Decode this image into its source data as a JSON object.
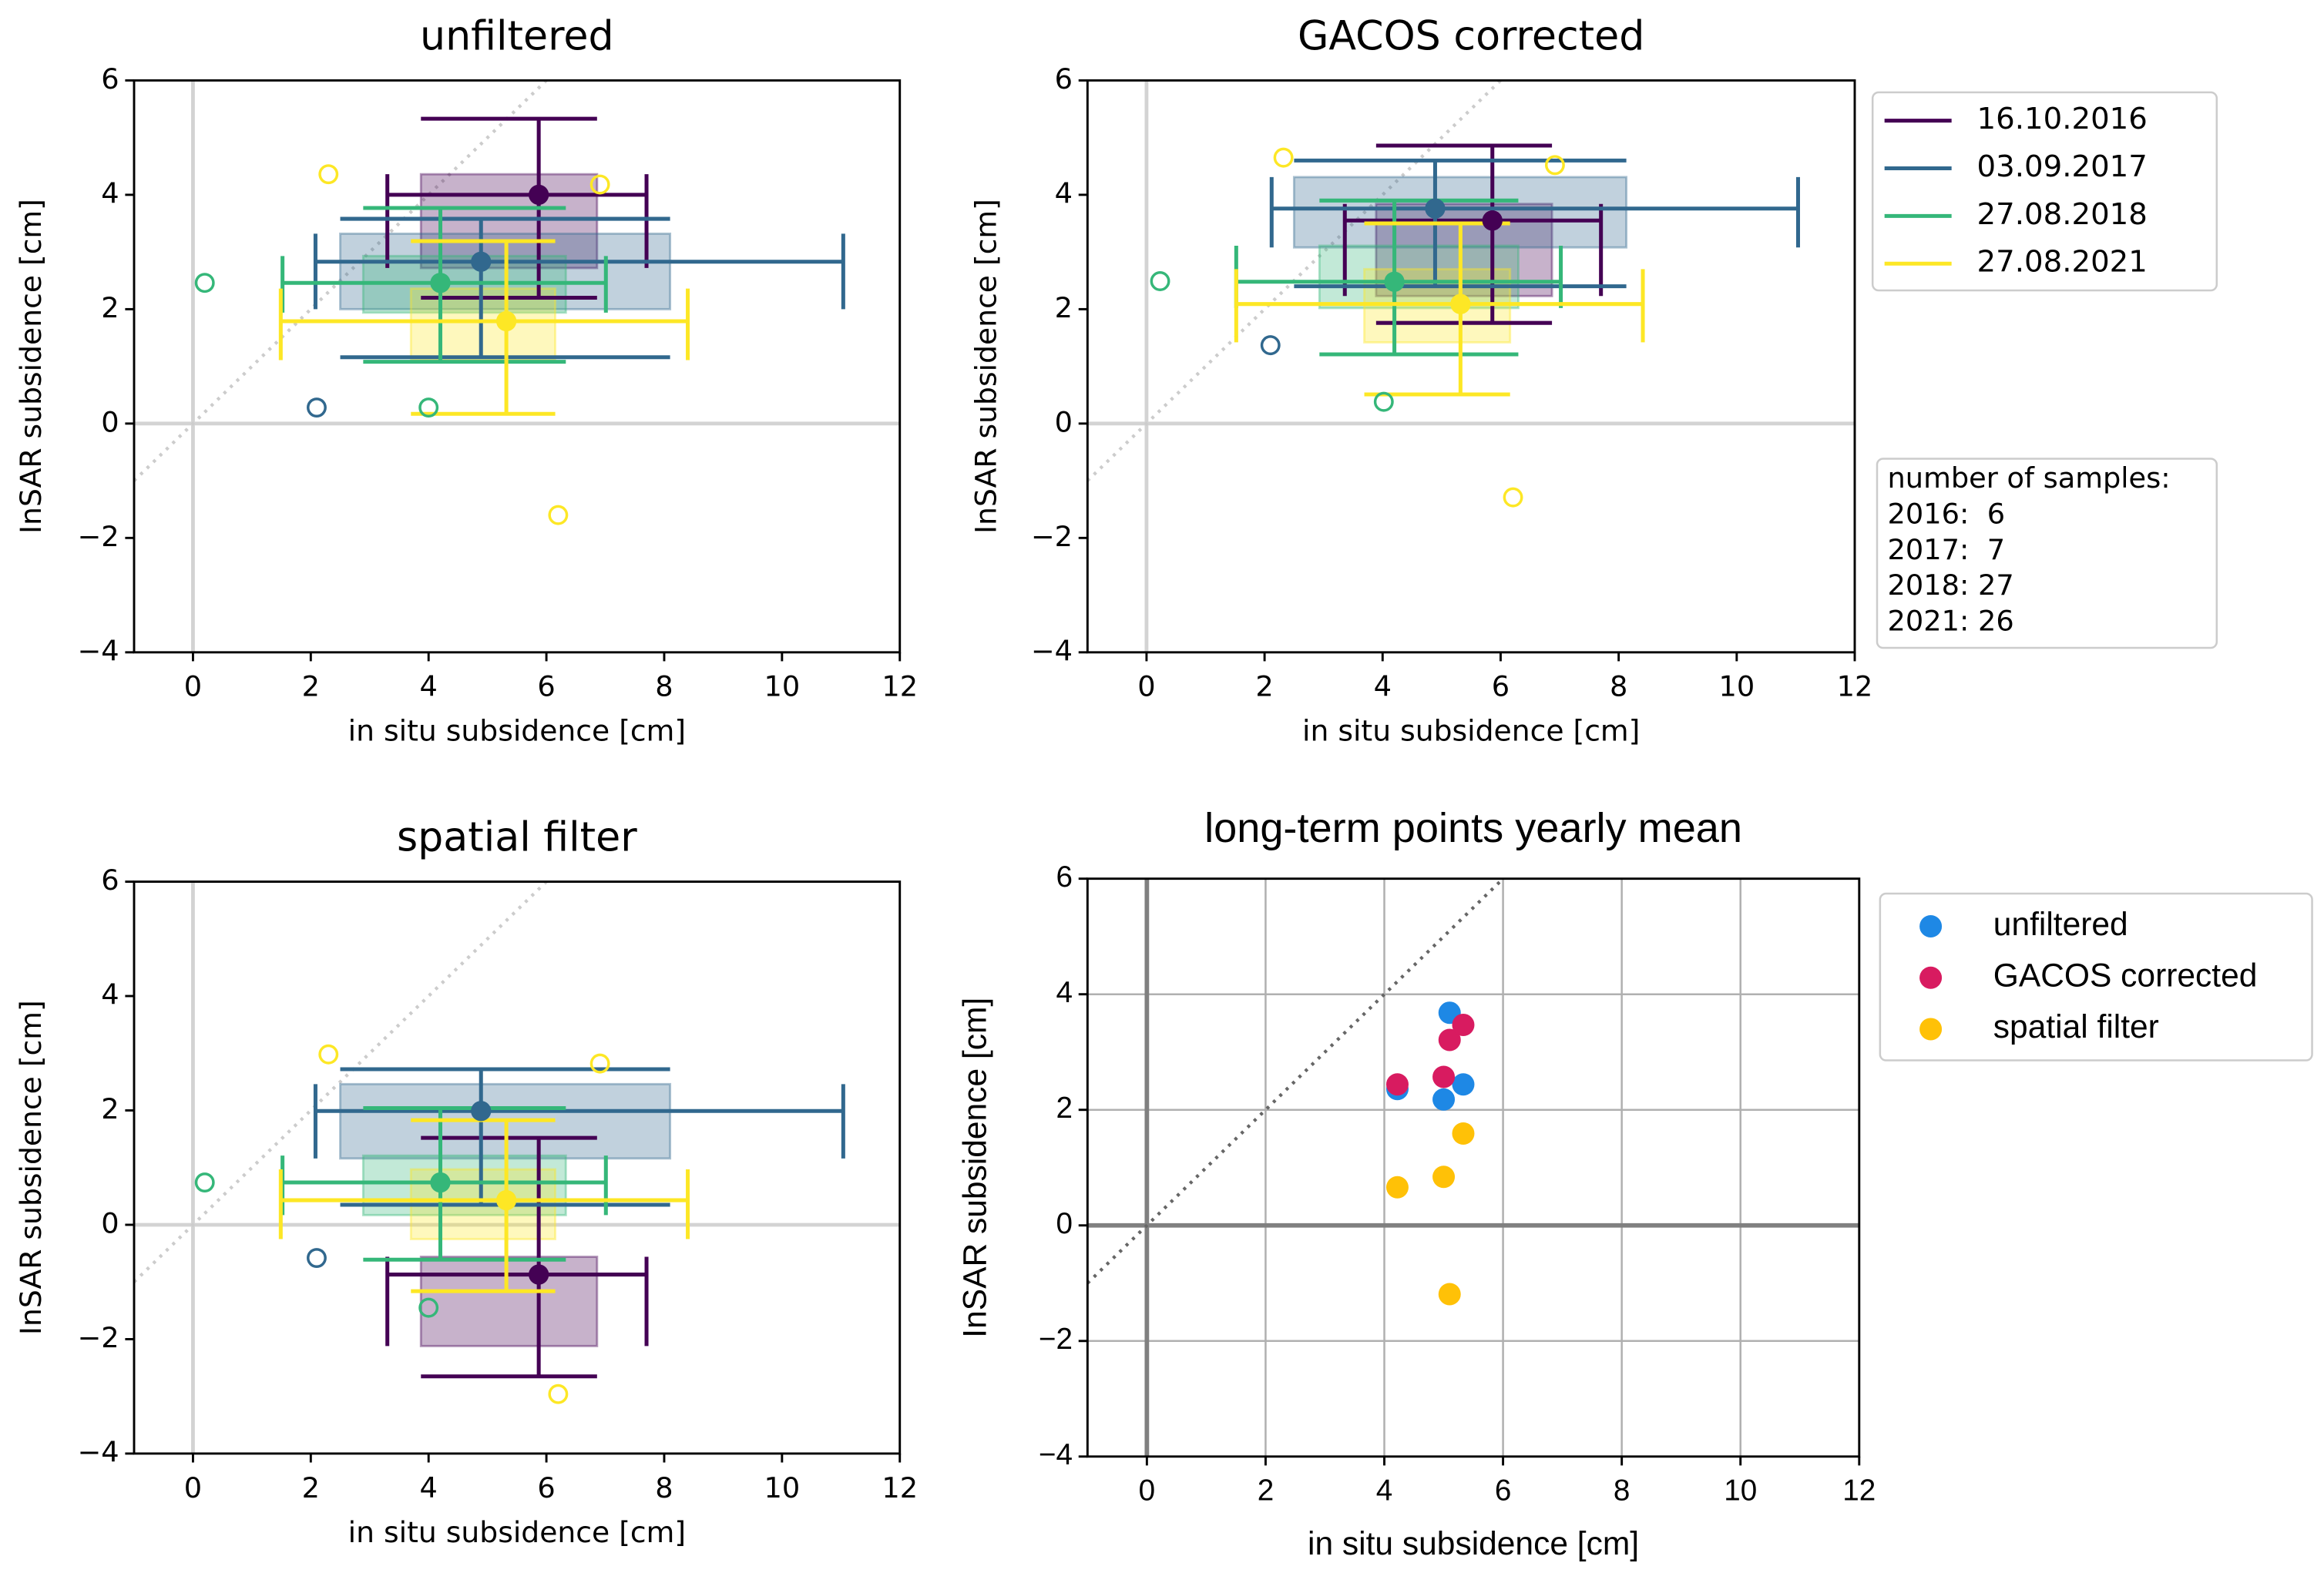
{
  "chart_data": [
    {
      "type": "errorbar",
      "title": "unfiltered",
      "xlabel": "in situ subsidence [cm]",
      "ylabel": "InSAR subsidence [cm]",
      "xlim": [
        -1,
        12
      ],
      "ylim": [
        -4,
        6
      ],
      "xticks": [
        0,
        2,
        4,
        6,
        8,
        10,
        12
      ],
      "yticks": [
        {
          "value": -4,
          "label": "−4"
        },
        {
          "value": -2,
          "label": "−2"
        },
        0,
        2,
        4,
        6
      ],
      "series": [
        {
          "color": "#440154",
          "x": 5.87,
          "y": 4.0,
          "x_range": [
            3.3,
            7.7
          ],
          "y_range": [
            2.2,
            5.33
          ],
          "box_x": [
            3.87,
            6.86
          ],
          "box_y": [
            2.72,
            4.36
          ],
          "outliers_x": [],
          "outliers_y": []
        },
        {
          "color": "#31688e",
          "x": 4.89,
          "y": 2.83,
          "x_range": [
            2.08,
            11.04
          ],
          "y_range": [
            1.16,
            3.58
          ],
          "box_x": [
            2.5,
            8.1
          ],
          "box_y": [
            2.0,
            3.32
          ],
          "outliers_x": [
            2.1
          ],
          "outliers_y": [
            0.28
          ]
        },
        {
          "color": "#35b779",
          "x": 4.2,
          "y": 2.46,
          "x_range": [
            1.52,
            7.01
          ],
          "y_range": [
            1.08,
            3.77
          ],
          "box_x": [
            2.89,
            6.33
          ],
          "box_y": [
            1.94,
            2.93
          ],
          "outliers_x": [
            0.2,
            4.0
          ],
          "outliers_y": [
            2.46,
            0.28
          ]
        },
        {
          "color": "#fde725",
          "x": 5.32,
          "y": 1.79,
          "x_range": [
            1.49,
            8.4
          ],
          "y_range": [
            0.17,
            3.19
          ],
          "box_x": [
            3.7,
            6.15
          ],
          "box_y": [
            1.11,
            2.36
          ],
          "outliers_x": [
            2.3,
            6.91,
            6.2
          ],
          "outliers_y": [
            4.36,
            4.18,
            -1.6
          ]
        }
      ]
    },
    {
      "type": "errorbar",
      "title": "GACOS corrected",
      "xlabel": "in situ subsidence [cm]",
      "ylabel": "InSAR subsidence [cm]",
      "xlim": [
        -1,
        12
      ],
      "ylim": [
        -4,
        6
      ],
      "xticks": [
        0,
        2,
        4,
        6,
        8,
        10,
        12
      ],
      "yticks": [
        {
          "value": -4,
          "label": "−4"
        },
        {
          "value": -2,
          "label": "−2"
        },
        0,
        2,
        4,
        6
      ],
      "legend": "outside right",
      "annotation": [
        "number of samples:",
        "2016:  6",
        "2017:  7",
        "2018: 27",
        "2021: 26"
      ],
      "series": [
        {
          "name": "16.10.2016",
          "color": "#440154",
          "x": 5.86,
          "y": 3.55,
          "x_range": [
            3.36,
            7.7
          ],
          "y_range": [
            1.76,
            4.86
          ],
          "box_x": [
            3.89,
            6.87
          ],
          "box_y": [
            2.23,
            3.84
          ],
          "outliers_x": [],
          "outliers_y": []
        },
        {
          "name": "03.09.2017",
          "color": "#31688e",
          "x": 4.89,
          "y": 3.76,
          "x_range": [
            2.12,
            11.04
          ],
          "y_range": [
            2.4,
            4.6
          ],
          "box_x": [
            2.5,
            8.13
          ],
          "box_y": [
            3.08,
            4.31
          ],
          "outliers_x": [
            2.1
          ],
          "outliers_y": [
            1.37
          ]
        },
        {
          "name": "27.08.2018",
          "color": "#35b779",
          "x": 4.2,
          "y": 2.48,
          "x_range": [
            1.52,
            7.02
          ],
          "y_range": [
            1.21,
            3.9
          ],
          "box_x": [
            2.93,
            6.3
          ],
          "box_y": [
            2.02,
            3.11
          ],
          "outliers_x": [
            0.23,
            4.02
          ],
          "outliers_y": [
            2.49,
            0.38
          ]
        },
        {
          "name": "27.08.2021",
          "color": "#fde725",
          "x": 5.32,
          "y": 2.09,
          "x_range": [
            1.52,
            8.41
          ],
          "y_range": [
            0.51,
            3.5
          ],
          "box_x": [
            3.69,
            6.16
          ],
          "box_y": [
            1.42,
            2.7
          ],
          "outliers_x": [
            2.32,
            6.92,
            6.21
          ],
          "outliers_y": [
            4.65,
            4.52,
            -1.29
          ]
        }
      ]
    },
    {
      "type": "errorbar",
      "title": "spatial filter",
      "xlabel": "in situ subsidence [cm]",
      "ylabel": "InSAR subsidence [cm]",
      "xlim": [
        -1,
        12
      ],
      "ylim": [
        -4,
        6
      ],
      "xticks": [
        0,
        2,
        4,
        6,
        8,
        10,
        12
      ],
      "yticks": [
        {
          "value": -4,
          "label": "−4"
        },
        {
          "value": -2,
          "label": "−2"
        },
        0,
        2,
        4,
        6
      ],
      "series": [
        {
          "color": "#440154",
          "x": 5.87,
          "y": -0.87,
          "x_range": [
            3.3,
            7.7
          ],
          "y_range": [
            -2.65,
            1.52
          ],
          "box_x": [
            3.87,
            6.86
          ],
          "box_y": [
            -2.12,
            -0.56
          ],
          "outliers_x": [],
          "outliers_y": []
        },
        {
          "color": "#31688e",
          "x": 4.89,
          "y": 1.99,
          "x_range": [
            2.08,
            11.04
          ],
          "y_range": [
            0.35,
            2.72
          ],
          "box_x": [
            2.5,
            8.1
          ],
          "box_y": [
            1.16,
            2.46
          ],
          "outliers_x": [
            2.1
          ],
          "outliers_y": [
            -0.58
          ]
        },
        {
          "color": "#35b779",
          "x": 4.2,
          "y": 0.74,
          "x_range": [
            1.52,
            7.01
          ],
          "y_range": [
            -0.61,
            2.04
          ],
          "box_x": [
            2.89,
            6.33
          ],
          "box_y": [
            0.17,
            1.21
          ],
          "outliers_x": [
            0.2,
            4.0
          ],
          "outliers_y": [
            0.74,
            -1.45
          ]
        },
        {
          "color": "#fde725",
          "x": 5.32,
          "y": 0.43,
          "x_range": [
            1.49,
            8.4
          ],
          "y_range": [
            -1.16,
            1.83
          ],
          "box_x": [
            3.7,
            6.15
          ],
          "box_y": [
            -0.25,
            0.97
          ],
          "outliers_x": [
            2.3,
            6.91,
            6.2
          ],
          "outliers_y": [
            2.98,
            2.82,
            -2.96
          ]
        }
      ]
    },
    {
      "type": "scatter",
      "title": "long-term points yearly mean",
      "xlabel": "in situ subsidence [cm]",
      "ylabel": "InSAR subsidence [cm]",
      "xlim": [
        -1,
        12
      ],
      "ylim": [
        -4,
        6
      ],
      "xticks": [
        0,
        2,
        4,
        6,
        8,
        10,
        12
      ],
      "yticks": [
        {
          "value": -4,
          "label": "−4"
        },
        {
          "value": -2,
          "label": "−2"
        },
        0,
        2,
        4,
        6
      ],
      "grid": true,
      "legend": "outside right",
      "series": [
        {
          "name": "unfiltered",
          "color": "#1e88e5",
          "x": [
            4.22,
            5.0,
            5.1,
            5.33
          ],
          "values": [
            2.36,
            2.18,
            3.68,
            2.44
          ]
        },
        {
          "name": "GACOS corrected",
          "color": "#d81b60",
          "x": [
            4.22,
            5.0,
            5.1,
            5.33
          ],
          "values": [
            2.44,
            2.57,
            3.21,
            3.47
          ]
        },
        {
          "name": "spatial filter",
          "color": "#ffc107",
          "x": [
            4.22,
            5.0,
            5.1,
            5.33
          ],
          "values": [
            0.66,
            0.84,
            -1.19,
            1.59
          ]
        }
      ]
    }
  ]
}
